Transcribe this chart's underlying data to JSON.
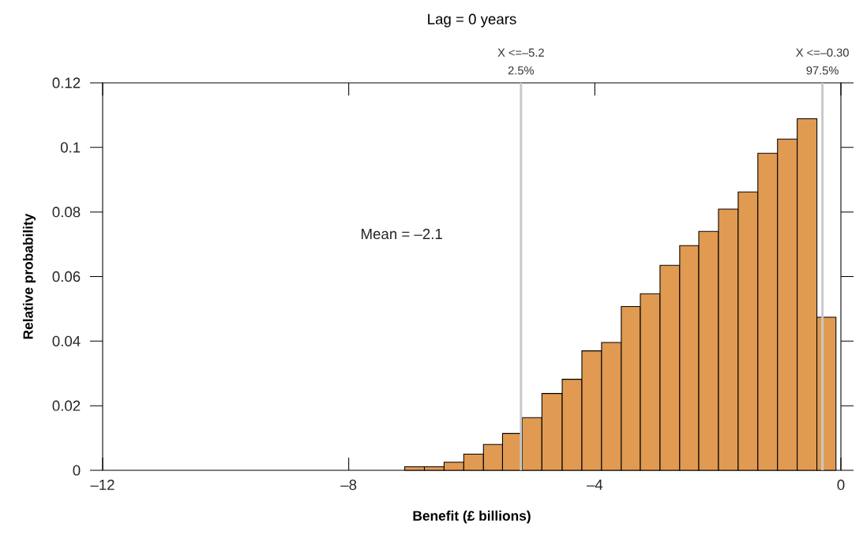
{
  "chart_data": {
    "type": "histogram",
    "title": "Lag = 0 years",
    "xlabel": "Benefit (£ billions)",
    "ylabel": "Relative probability",
    "bins": [
      -7.09,
      -6.77,
      -6.45,
      -6.13,
      -5.81,
      -5.5,
      -5.18,
      -4.86,
      -4.53,
      -4.21,
      -3.89,
      -3.57,
      -3.26,
      -2.94,
      -2.62,
      -2.31,
      -1.99,
      -1.67,
      -1.35,
      -1.03,
      -0.71,
      -0.39,
      -0.08
    ],
    "values": [
      0.0011,
      0.0011,
      0.0025,
      0.005,
      0.008,
      0.0114,
      0.0163,
      0.0238,
      0.0282,
      0.037,
      0.0396,
      0.0507,
      0.0547,
      0.0635,
      0.0696,
      0.074,
      0.0809,
      0.0862,
      0.0982,
      0.1026,
      0.1089,
      0.0474
    ],
    "color": "#e09a52",
    "xlim": [
      -12,
      0
    ],
    "ylim": [
      0,
      0.12
    ],
    "xticks": [
      {
        "value": -12,
        "label": "–12"
      },
      {
        "value": -8,
        "label": "–8"
      },
      {
        "value": -4,
        "label": "–4"
      },
      0
    ],
    "yticks": [
      0,
      0.02,
      0.04,
      0.06,
      0.08,
      0.1,
      0.12
    ],
    "ref_lines": [
      {
        "axis": "x",
        "value": -5.2,
        "label": "X <=–5.2",
        "color": "#c8c8c8"
      },
      {
        "axis": "x",
        "value": -0.3,
        "label": "X <=–0.30",
        "color": "#c8c8c8"
      }
    ],
    "annotations": [
      {
        "text": "2.5%",
        "x": -5.2,
        "y": 0.12
      },
      {
        "text": "97.5%",
        "x": -0.3,
        "y": 0.12
      },
      "Mean = –2.1"
    ],
    "grid": false
  }
}
